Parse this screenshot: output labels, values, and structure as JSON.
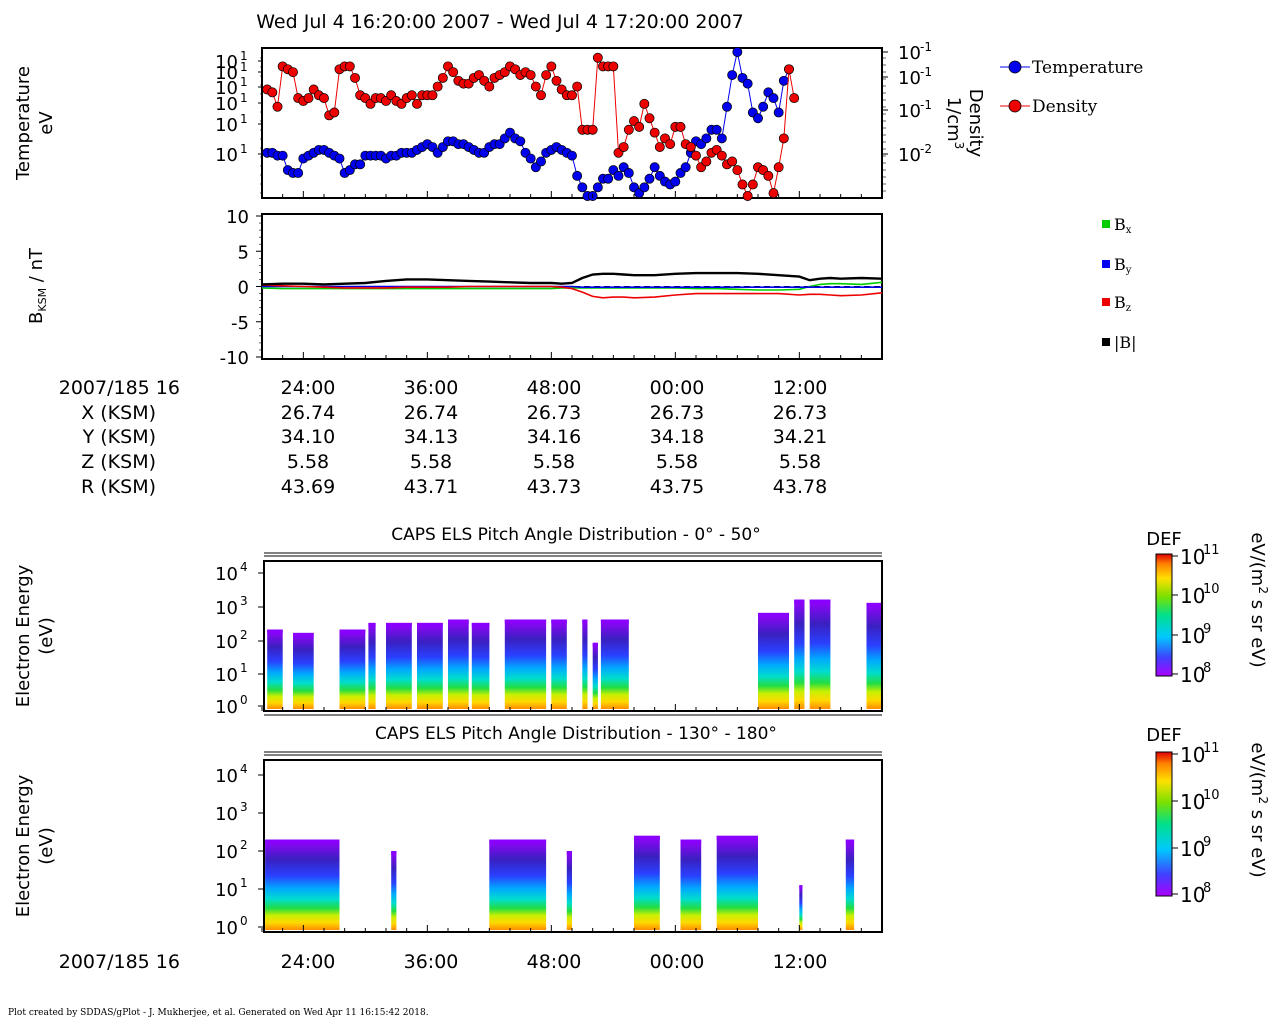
{
  "title": "Wed Jul 4 16:20:00 2007 - Wed Jul 4 17:20:00 2007",
  "footer": "Plot created by SDDAS/gPlot - J. Mukherjee, et al.  Generated on Wed Apr 11 16:15:42 2018.",
  "colors": {
    "temperature": "#0000ee",
    "density": "#ee0000",
    "bx": "#00cc00",
    "by": "#0000ee",
    "bz": "#ee0000",
    "bmag": "#000000"
  },
  "chart_data": [
    {
      "type": "line",
      "panel": "moments",
      "ylabel_line1": "Temperature",
      "ylabel_line2": "eV",
      "y2label_line1": "Density",
      "y2label_line2": "1/cm",
      "y2label_sup": "3",
      "yticks_left": [
        "10",
        "10",
        "10",
        "10",
        "10",
        "10"
      ],
      "yticks_left_sup": "1",
      "yticks_right": [
        "10",
        "10",
        "10",
        "10"
      ],
      "yticks_right_sup": [
        "-1",
        "-1",
        "-1",
        "-2"
      ],
      "legend": [
        {
          "name": "Temperature",
          "color": "#0000ee"
        },
        {
          "name": "Density",
          "color": "#ee0000"
        }
      ],
      "x_minutes": [
        20.5,
        21,
        21.5,
        22,
        22.5,
        23,
        23.5,
        24,
        24.5,
        25,
        25.5,
        26,
        26.5,
        27,
        27.5,
        28,
        28.5,
        29,
        29.5,
        30,
        30.5,
        31,
        31.5,
        32,
        32.5,
        33,
        33.5,
        34,
        34.5,
        35,
        35.5,
        36,
        36.5,
        37,
        37.5,
        38,
        38.5,
        39,
        39.5,
        40,
        40.5,
        41,
        41.5,
        42,
        42.5,
        43,
        43.5,
        44,
        44.5,
        45,
        45.5,
        46,
        46.5,
        47,
        47.5,
        48,
        48.5,
        49,
        49.5,
        50,
        50.5,
        51,
        51.5,
        52,
        52.5,
        53,
        53.5,
        54,
        54.5,
        55,
        55.5,
        56,
        56.5,
        57,
        57.5,
        58,
        58.5,
        59,
        59.5,
        60,
        60.5,
        61,
        61.5,
        62,
        62.5,
        63,
        63.5,
        64,
        64.5,
        65,
        65.5,
        66,
        66.5,
        67,
        67.5,
        68,
        68.5,
        69,
        69.5,
        70,
        70.5,
        71,
        71.5,
        72,
        72.5,
        73,
        73.5,
        74,
        74.5,
        75,
        75.5,
        76,
        76.5,
        77,
        77.5,
        78,
        78.5,
        79,
        79.5,
        80
      ],
      "temperature": [
        0.3,
        0.3,
        0.28,
        0.28,
        0.18,
        0.16,
        0.16,
        0.26,
        0.28,
        0.3,
        0.32,
        0.32,
        0.3,
        0.28,
        0.26,
        0.16,
        0.18,
        0.22,
        0.22,
        0.28,
        0.28,
        0.28,
        0.28,
        0.26,
        0.28,
        0.28,
        0.3,
        0.3,
        0.3,
        0.32,
        0.34,
        0.36,
        0.34,
        0.3,
        0.34,
        0.38,
        0.38,
        0.36,
        0.36,
        0.34,
        0.32,
        0.3,
        0.3,
        0.34,
        0.36,
        0.36,
        0.4,
        0.44,
        0.4,
        0.38,
        0.3,
        0.26,
        0.2,
        0.24,
        0.3,
        0.32,
        0.34,
        0.32,
        0.3,
        0.28,
        0.14,
        0.06,
        0.0,
        0.0,
        0.06,
        0.12,
        0.12,
        0.18,
        0.14,
        0.2,
        0.16,
        0.06,
        0.02,
        0.06,
        0.12,
        0.2,
        0.14,
        0.1,
        0.08,
        0.1,
        0.16,
        0.2,
        0.3,
        0.38,
        0.36,
        0.4,
        0.46,
        0.46,
        0.4,
        0.62,
        0.84,
        1.0,
        0.82,
        0.78,
        0.58,
        0.54,
        0.62,
        0.72,
        0.68,
        0.58,
        0.8,
        0.88
      ],
      "temperature_x_start_index": 0,
      "density": [
        0.74,
        0.72,
        0.62,
        0.9,
        0.88,
        0.86,
        0.68,
        0.66,
        0.68,
        0.74,
        0.7,
        0.68,
        0.56,
        0.58,
        0.88,
        0.9,
        0.9,
        0.82,
        0.7,
        0.68,
        0.64,
        0.68,
        0.68,
        0.66,
        0.7,
        0.66,
        0.64,
        0.68,
        0.7,
        0.64,
        0.7,
        0.7,
        0.7,
        0.76,
        0.82,
        0.9,
        0.86,
        0.8,
        0.78,
        0.78,
        0.82,
        0.84,
        0.8,
        0.76,
        0.82,
        0.84,
        0.86,
        0.9,
        0.88,
        0.84,
        0.86,
        0.84,
        0.76,
        0.7,
        0.84,
        0.9,
        0.8,
        0.74,
        0.7,
        0.7,
        0.76,
        0.46,
        0.46,
        0.46,
        0.96,
        0.9,
        0.9,
        0.9,
        0.3,
        0.34,
        0.46,
        0.52,
        0.48,
        0.64,
        0.54,
        0.44,
        0.34,
        0.4,
        0.36,
        0.48,
        0.48,
        0.36,
        0.34,
        0.28,
        0.2,
        0.24,
        0.3,
        0.32,
        0.28,
        0.22,
        0.24,
        0.18,
        0.08,
        0.0,
        0.08,
        0.2,
        0.18,
        0.14,
        0.02,
        0.2,
        0.4,
        0.88,
        0.68
      ]
    },
    {
      "type": "line",
      "panel": "magnetic-field",
      "ylabel": "B",
      "ylabel_sub": "KSM",
      "ylabel_unit": " / nT",
      "ylim": [
        -10,
        10
      ],
      "yticks": [
        "10",
        "5",
        "0",
        "-5",
        "-10"
      ],
      "ytick_values": [
        10,
        5,
        0,
        -5,
        -10
      ],
      "legend": [
        {
          "name": "B",
          "sub": "x",
          "color": "#00cc00"
        },
        {
          "name": "B",
          "sub": "y",
          "color": "#0000ee"
        },
        {
          "name": "B",
          "sub": "z",
          "color": "#ee0000"
        },
        {
          "name": "|B|",
          "sub": "",
          "color": "#000000"
        }
      ],
      "x_minutes": [
        20,
        22,
        24,
        26,
        28,
        30,
        32,
        34,
        36,
        38,
        40,
        42,
        44,
        46,
        48,
        49,
        50,
        51,
        52,
        53,
        54,
        55,
        56,
        58,
        60,
        62,
        64,
        66,
        68,
        70,
        72,
        73,
        74,
        75,
        76,
        78,
        80
      ],
      "series": {
        "bx": [
          -0.2,
          -0.3,
          -0.3,
          -0.3,
          -0.3,
          -0.3,
          -0.3,
          -0.3,
          -0.3,
          -0.3,
          -0.3,
          -0.3,
          -0.3,
          -0.3,
          -0.3,
          -0.2,
          -0.2,
          -0.2,
          -0.2,
          -0.2,
          -0.2,
          -0.2,
          -0.2,
          -0.2,
          -0.2,
          -0.3,
          -0.3,
          -0.4,
          -0.5,
          -0.5,
          -0.4,
          0.0,
          0.3,
          0.4,
          0.4,
          0.3,
          0.6
        ],
        "by": [
          0.0,
          0.0,
          0.0,
          0.0,
          0.0,
          0.0,
          0.0,
          0.0,
          0.0,
          0.0,
          0.0,
          0.0,
          0.0,
          0.0,
          0.0,
          0.0,
          0.0,
          -0.1,
          -0.1,
          -0.1,
          -0.1,
          -0.1,
          -0.1,
          -0.1,
          -0.1,
          -0.1,
          -0.1,
          -0.1,
          -0.1,
          -0.1,
          -0.1,
          -0.1,
          -0.1,
          -0.1,
          -0.1,
          -0.1,
          -0.1
        ],
        "bz": [
          0.2,
          0.1,
          0.0,
          -0.1,
          -0.2,
          -0.2,
          -0.2,
          -0.1,
          -0.1,
          -0.1,
          0.0,
          0.0,
          0.0,
          0.0,
          0.0,
          -0.1,
          -0.3,
          -0.8,
          -1.4,
          -1.6,
          -1.5,
          -1.5,
          -1.6,
          -1.5,
          -1.2,
          -1.0,
          -1.0,
          -1.0,
          -1.0,
          -1.0,
          -1.2,
          -1.1,
          -1.1,
          -1.2,
          -1.3,
          -1.2,
          -0.9
        ],
        "bmag": [
          0.3,
          0.4,
          0.4,
          0.3,
          0.4,
          0.5,
          0.8,
          1.0,
          1.0,
          0.9,
          0.8,
          0.7,
          0.6,
          0.5,
          0.5,
          0.4,
          0.5,
          1.2,
          1.7,
          1.8,
          1.8,
          1.7,
          1.6,
          1.6,
          1.8,
          1.9,
          1.9,
          1.9,
          1.8,
          1.6,
          1.4,
          0.9,
          1.1,
          1.2,
          1.1,
          1.2,
          1.1
        ]
      }
    },
    {
      "type": "heatmap",
      "panel": "pad-0-50",
      "title": "CAPS ELS Pitch Angle Distribution - 0° - 50°",
      "ylabel_line1": "Electron Energy",
      "ylabel_line2": "(eV)",
      "yticks": [
        "10",
        "10",
        "10",
        "10",
        "10"
      ],
      "yticks_sup": [
        "4",
        "3",
        "2",
        "1",
        "0"
      ],
      "colorbar_label": "DEF",
      "colorbar_unit": "eV/(m",
      "colorbar_unit_sup": "2",
      "colorbar_unit_rest": " s sr eV)",
      "colorbar_ticks": [
        "10",
        "10",
        "10",
        "10"
      ],
      "colorbar_ticks_sup": [
        "11",
        "10",
        "9",
        "8"
      ],
      "on_segments_minutes": [
        [
          20.5,
          22
        ],
        [
          23,
          25
        ],
        [
          27.5,
          30
        ],
        [
          30.3,
          31
        ],
        [
          32,
          34.5
        ],
        [
          35,
          37.5
        ],
        [
          38,
          40
        ],
        [
          40.3,
          42
        ],
        [
          43.5,
          47.5
        ],
        [
          48,
          49.5
        ],
        [
          51,
          51.5
        ],
        [
          52,
          52.5
        ],
        [
          52.8,
          55.5
        ],
        [
          68,
          71
        ],
        [
          71.5,
          72.5
        ],
        [
          73,
          75
        ],
        [
          78.5,
          80
        ]
      ],
      "energy_extent_log10": [
        2.3,
        2.2,
        2.3,
        2.5,
        2.5,
        2.5,
        2.6,
        2.5,
        2.6,
        2.6,
        2.6,
        1.9,
        2.6,
        2.8,
        3.2,
        3.2,
        3.1
      ]
    },
    {
      "type": "heatmap",
      "panel": "pad-130-180",
      "title": "CAPS ELS Pitch Angle Distribution - 130° - 180°",
      "ylabel_line1": "Electron Energy",
      "ylabel_line2": "(eV)",
      "yticks": [
        "10",
        "10",
        "10",
        "10",
        "10"
      ],
      "yticks_sup": [
        "4",
        "3",
        "2",
        "1",
        "0"
      ],
      "colorbar_label": "DEF",
      "colorbar_unit": "eV/(m",
      "colorbar_unit_sup": "2",
      "colorbar_unit_rest": " s sr eV)",
      "colorbar_ticks": [
        "10",
        "10",
        "10",
        "10"
      ],
      "colorbar_ticks_sup": [
        "11",
        "10",
        "9",
        "8"
      ],
      "on_segments_minutes": [
        [
          20.3,
          27.5
        ],
        [
          32.5,
          33
        ],
        [
          42,
          47.5
        ],
        [
          49.5,
          50
        ],
        [
          56,
          58.5
        ],
        [
          60.5,
          62.5
        ],
        [
          64,
          68
        ],
        [
          72,
          72.3
        ],
        [
          76.5,
          77.3
        ]
      ],
      "energy_extent_log10": [
        2.3,
        2.0,
        2.3,
        2.0,
        2.4,
        2.3,
        2.4,
        1.1,
        2.3
      ]
    }
  ],
  "ephemeris": {
    "labels": [
      "2007/185 16",
      "X (KSM)",
      "Y (KSM)",
      "Z (KSM)",
      "R (KSM)"
    ],
    "time_ticks": [
      "24:00",
      "36:00",
      "48:00",
      "00:00",
      "12:00"
    ],
    "rows": [
      [
        "26.74",
        "26.74",
        "26.73",
        "26.73",
        "26.73"
      ],
      [
        "34.10",
        "34.13",
        "34.16",
        "34.18",
        "34.21"
      ],
      [
        "5.58",
        "5.58",
        "5.58",
        "5.58",
        "5.58"
      ],
      [
        "43.69",
        "43.71",
        "43.73",
        "43.75",
        "43.78"
      ]
    ]
  },
  "bottom_axis": {
    "label": "2007/185 16",
    "time_ticks": [
      "24:00",
      "36:00",
      "48:00",
      "00:00",
      "12:00"
    ]
  }
}
